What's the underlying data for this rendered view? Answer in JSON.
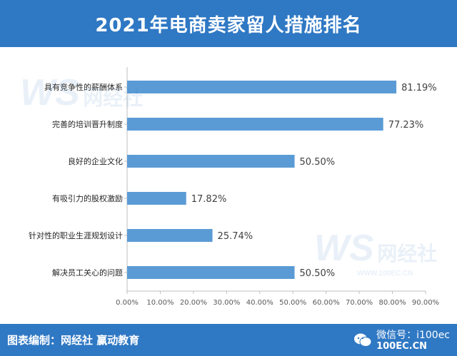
{
  "header": {
    "title": "2021年电商卖家留人措施排名"
  },
  "footer": {
    "credit": "图表编制：网经社  赢动教育",
    "wechat": "微信号：i100ec",
    "site": "100EC.CN"
  },
  "watermark": {
    "logo": "WS",
    "name": "网经社",
    "url": "WWW.100EC.CN"
  },
  "colors": {
    "bar": "#5b9bd5",
    "header": "#2f78c4"
  },
  "chart_data": {
    "type": "bar",
    "orientation": "horizontal",
    "categories": [
      "具有竞争性的薪酬体系",
      "完善的培训晋升制度",
      "良好的企业文化",
      "有吸引力的股权激励",
      "针对性的职业生涯规划设计",
      "解决员工关心的问题"
    ],
    "values": [
      81.19,
      77.23,
      50.5,
      17.82,
      25.74,
      50.5
    ],
    "value_labels": [
      "81.19%",
      "77.23%",
      "50.50%",
      "17.82%",
      "25.74%",
      "50.50%"
    ],
    "xlim": [
      0,
      90
    ],
    "xticks": [
      "0.00%",
      "10.00%",
      "20.00%",
      "30.00%",
      "40.00%",
      "50.00%",
      "60.00%",
      "70.00%",
      "80.00%",
      "90.00%"
    ],
    "grid": false,
    "legend": "none"
  }
}
